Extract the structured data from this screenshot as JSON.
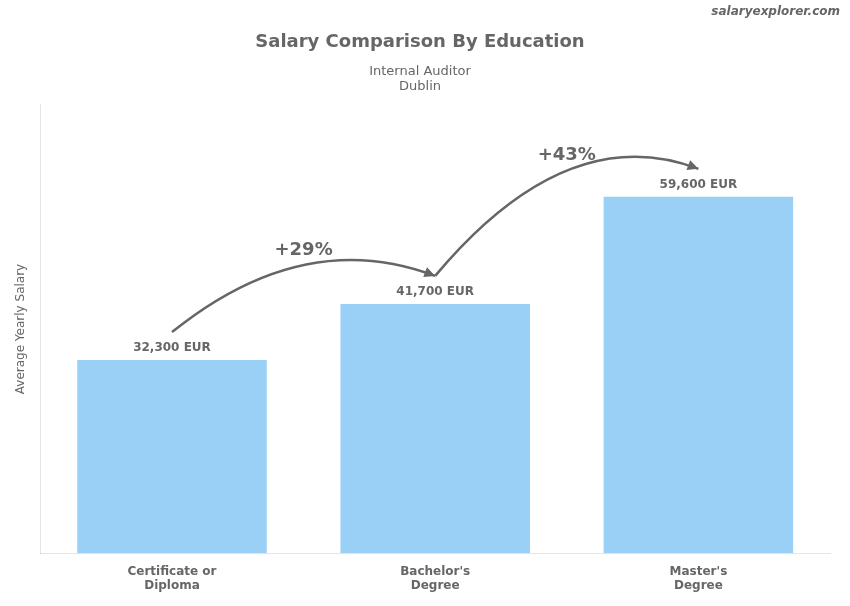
{
  "chart_data": {
    "type": "bar",
    "title": "Salary Comparison By Education",
    "subtitle": [
      "Internal Auditor",
      "Dublin"
    ],
    "y_label": "Average Yearly Salary",
    "categories": [
      "Certificate or\nDiploma",
      "Bachelor's\nDegree",
      "Master's\nDegree"
    ],
    "values": [
      32300,
      41700,
      59600
    ],
    "value_labels": [
      "32,300 EUR",
      "41,700 EUR",
      "59,600 EUR"
    ],
    "data_labels": true,
    "annotations": [
      "+29%",
      "+43%",
      "salaryexplorer.com"
    ],
    "ylim": [
      0,
      75000
    ],
    "yticks": [],
    "grid": false,
    "tick_labels": "x"
  }
}
